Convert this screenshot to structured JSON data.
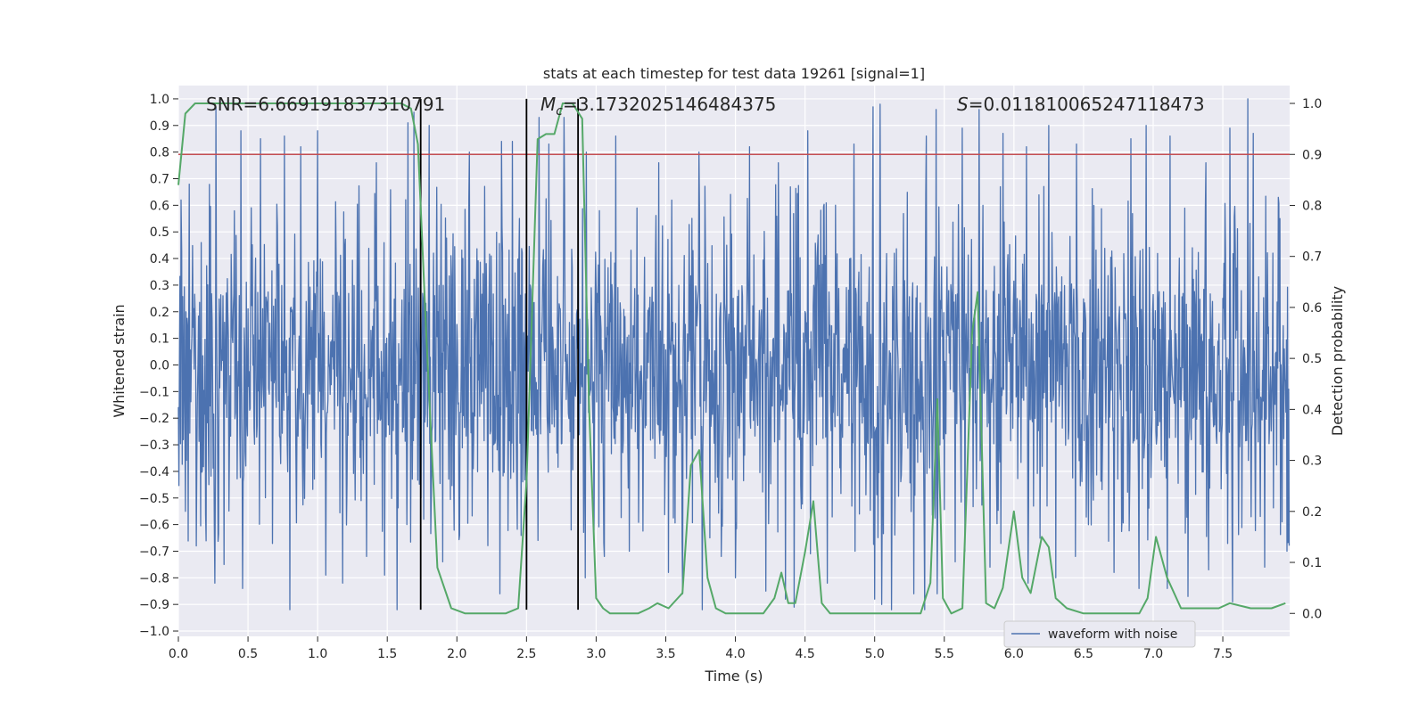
{
  "chart_data": {
    "type": "line",
    "title": "stats at each timestep for test data 19261 [signal=1]",
    "xlabel": "Time (s)",
    "ylabel": "Whitened strain",
    "ylabel_right": "Detection probability",
    "xlim": [
      0.0,
      7.98
    ],
    "ylim": [
      -1.02,
      1.05
    ],
    "ylim_right": [
      -0.045,
      1.035
    ],
    "x_ticks": [
      "0.0",
      "0.5",
      "1.0",
      "1.5",
      "2.0",
      "2.5",
      "3.0",
      "3.5",
      "4.0",
      "4.5",
      "5.0",
      "5.5",
      "6.0",
      "6.5",
      "7.0",
      "7.5"
    ],
    "y_ticks": [
      "1.0",
      "0.9",
      "0.8",
      "0.7",
      "0.6",
      "0.5",
      "0.4",
      "0.3",
      "0.2",
      "0.1",
      "0.0",
      "−0.1",
      "−0.2",
      "−0.3",
      "−0.4",
      "−0.5",
      "−0.6",
      "−0.7",
      "−0.8",
      "−0.9",
      "−1.0"
    ],
    "y_ticks_right": [
      "1.0",
      "0.9",
      "0.8",
      "0.7",
      "0.6",
      "0.5",
      "0.4",
      "0.3",
      "0.2",
      "0.1",
      "0.0"
    ],
    "grid": true,
    "legend": {
      "entries": [
        "waveform with noise"
      ],
      "placement": "lower-right"
    },
    "annotations": {
      "snr_text": "SNR=6.669191837310791",
      "mc_symbol": "M",
      "mc_subscript": "c",
      "mc_value": "=3.1732025146484375",
      "s_symbol": "S",
      "s_value": "=0.011810065247118473"
    },
    "threshold_line": {
      "axis": "right",
      "value": 0.9,
      "color": "#c44e52"
    },
    "vertical_lines": {
      "x": [
        1.74,
        2.5,
        2.87
      ],
      "y_range": [
        -0.92,
        1.0
      ]
    },
    "series": [
      {
        "name": "waveform with noise",
        "color": "#4c72b0",
        "axis": "left",
        "sample_rate": 256,
        "duration": 7.98,
        "core_amplitude": 0.3,
        "peak_max": [
          [
            0.02,
            0.62
          ],
          [
            0.27,
            0.97
          ],
          [
            0.45,
            0.88
          ],
          [
            0.59,
            0.85
          ],
          [
            0.76,
            0.86
          ],
          [
            0.88,
            0.82
          ],
          [
            1.0,
            0.88
          ],
          [
            1.18,
            0.8
          ],
          [
            1.42,
            0.76
          ],
          [
            1.57,
            0.82
          ],
          [
            1.65,
            0.91
          ],
          [
            1.69,
            0.95
          ],
          [
            1.8,
            0.9
          ],
          [
            1.9,
            0.93
          ],
          [
            2.09,
            0.8
          ],
          [
            2.32,
            0.84
          ],
          [
            2.4,
            0.84
          ],
          [
            2.59,
            0.93
          ],
          [
            2.66,
            0.83
          ],
          [
            2.77,
            0.93
          ],
          [
            2.93,
            0.8
          ],
          [
            3.14,
            0.86
          ],
          [
            3.45,
            0.76
          ],
          [
            3.74,
            0.8
          ],
          [
            3.9,
            0.85
          ],
          [
            4.1,
            0.82
          ],
          [
            4.31,
            0.76
          ],
          [
            4.52,
            0.88
          ],
          [
            4.66,
            0.82
          ],
          [
            4.85,
            0.83
          ],
          [
            4.99,
            0.97
          ],
          [
            5.04,
            0.98
          ],
          [
            5.37,
            0.86
          ],
          [
            5.44,
            0.96
          ],
          [
            5.63,
            0.89
          ],
          [
            5.75,
            0.96
          ],
          [
            5.92,
            0.87
          ],
          [
            6.09,
            0.82
          ],
          [
            6.25,
            0.9
          ],
          [
            6.45,
            0.83
          ],
          [
            6.72,
            0.89
          ],
          [
            6.84,
            0.85
          ],
          [
            6.95,
            0.9
          ],
          [
            7.12,
            0.86
          ],
          [
            7.38,
            0.76
          ],
          [
            7.55,
            0.89
          ],
          [
            7.68,
            1.0
          ],
          [
            7.72,
            0.87
          ],
          [
            7.9,
            0.63
          ]
        ],
        "peak_min": [
          [
            0.05,
            -0.55
          ],
          [
            0.13,
            -0.68
          ],
          [
            0.26,
            -0.82
          ],
          [
            0.33,
            -0.75
          ],
          [
            0.46,
            -0.84
          ],
          [
            0.8,
            -0.92
          ],
          [
            1.06,
            -0.79
          ],
          [
            1.18,
            -0.82
          ],
          [
            1.35,
            -0.72
          ],
          [
            1.48,
            -0.79
          ],
          [
            1.57,
            -0.92
          ],
          [
            1.64,
            -0.6
          ],
          [
            1.76,
            -0.58
          ],
          [
            1.9,
            -0.74
          ],
          [
            2.02,
            -0.64
          ],
          [
            2.31,
            -0.86
          ],
          [
            2.5,
            -0.91
          ],
          [
            2.82,
            -0.62
          ],
          [
            2.92,
            -0.8
          ],
          [
            3.06,
            -0.72
          ],
          [
            3.24,
            -0.7
          ],
          [
            3.52,
            -0.78
          ],
          [
            3.62,
            -0.86
          ],
          [
            3.76,
            -0.92
          ],
          [
            3.9,
            -0.72
          ],
          [
            4.0,
            -0.8
          ],
          [
            4.22,
            -0.85
          ],
          [
            4.36,
            -0.88
          ],
          [
            4.42,
            -0.91
          ],
          [
            4.54,
            -0.71
          ],
          [
            4.66,
            -0.82
          ],
          [
            4.86,
            -0.7
          ],
          [
            5.0,
            -0.88
          ],
          [
            5.05,
            -0.9
          ],
          [
            5.12,
            -0.92
          ],
          [
            5.28,
            -0.86
          ],
          [
            5.36,
            -0.92
          ],
          [
            5.45,
            -0.86
          ],
          [
            5.58,
            -0.74
          ],
          [
            5.65,
            -0.7
          ],
          [
            5.83,
            -0.76
          ],
          [
            6.1,
            -0.82
          ],
          [
            6.3,
            -0.8
          ],
          [
            6.44,
            -0.72
          ],
          [
            6.72,
            -0.78
          ],
          [
            6.9,
            -0.84
          ],
          [
            7.1,
            -0.84
          ],
          [
            7.25,
            -0.87
          ],
          [
            7.4,
            -0.77
          ],
          [
            7.57,
            -0.89
          ],
          [
            7.8,
            -0.76
          ],
          [
            7.96,
            -0.7
          ]
        ]
      },
      {
        "name": "",
        "color": "#55a868",
        "axis": "right",
        "x": [
          0.0,
          0.05,
          0.12,
          0.3,
          0.6,
          1.0,
          1.3,
          1.6,
          1.67,
          1.72,
          1.78,
          1.86,
          1.96,
          2.06,
          2.2,
          2.35,
          2.44,
          2.5,
          2.58,
          2.64,
          2.7,
          2.76,
          2.83,
          2.9,
          2.95,
          3.0,
          3.05,
          3.1,
          3.2,
          3.3,
          3.38,
          3.44,
          3.52,
          3.62,
          3.68,
          3.74,
          3.8,
          3.86,
          3.93,
          4.02,
          4.12,
          4.2,
          4.28,
          4.33,
          4.38,
          4.43,
          4.5,
          4.56,
          4.62,
          4.68,
          4.76,
          4.9,
          5.1,
          5.25,
          5.33,
          5.4,
          5.45,
          5.49,
          5.55,
          5.63,
          5.7,
          5.74,
          5.8,
          5.86,
          5.92,
          6.0,
          6.06,
          6.12,
          6.2,
          6.25,
          6.3,
          6.38,
          6.5,
          6.7,
          6.9,
          6.96,
          7.02,
          7.1,
          7.2,
          7.3,
          7.4,
          7.47,
          7.55,
          7.7,
          7.85,
          7.95
        ],
        "y": [
          0.84,
          0.98,
          1.0,
          1.0,
          1.0,
          1.0,
          1.0,
          1.0,
          0.99,
          0.92,
          0.55,
          0.09,
          0.01,
          0.0,
          0.0,
          0.0,
          0.01,
          0.26,
          0.93,
          0.94,
          0.94,
          1.0,
          1.0,
          0.97,
          0.4,
          0.03,
          0.01,
          0.0,
          0.0,
          0.0,
          0.01,
          0.02,
          0.01,
          0.04,
          0.29,
          0.32,
          0.07,
          0.01,
          0.0,
          0.0,
          0.0,
          0.0,
          0.03,
          0.08,
          0.02,
          0.02,
          0.12,
          0.22,
          0.02,
          0.0,
          0.0,
          0.0,
          0.0,
          0.0,
          0.0,
          0.06,
          0.42,
          0.03,
          0.0,
          0.01,
          0.55,
          0.63,
          0.02,
          0.01,
          0.05,
          0.2,
          0.07,
          0.04,
          0.15,
          0.13,
          0.03,
          0.01,
          0.0,
          0.0,
          0.0,
          0.03,
          0.15,
          0.07,
          0.01,
          0.01,
          0.01,
          0.01,
          0.02,
          0.01,
          0.01,
          0.02
        ]
      }
    ]
  }
}
